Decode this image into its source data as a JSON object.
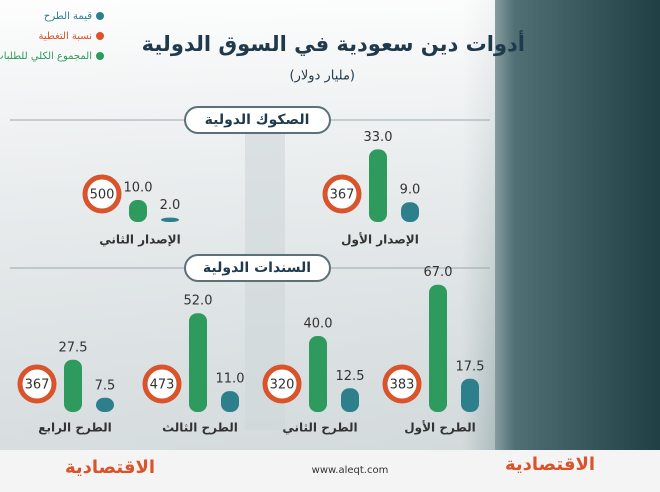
{
  "title": "أدوات دين سعودية في السوق الدولية",
  "subtitle": "(مليار دولار)",
  "legend": [
    {
      "name": "قيمة الطرح",
      "color": "#2e7f8c"
    },
    {
      "name": "نسبة التغطية",
      "color": "#d9532b"
    },
    {
      "name": "المجموع الكلي للطلبات",
      "color": "#2f9a5e"
    }
  ],
  "chart_data": [
    {
      "type": "bar",
      "title": "الصكوك الدولية",
      "categories": [
        "الإصدار الأول",
        "الإصدار الثاني"
      ],
      "series": [
        {
          "color": "#2f9a5e",
          "values": [
            33,
            10
          ],
          "value_labels": [
            "33.0",
            "10.0"
          ]
        },
        {
          "color": "#2e7f8c",
          "values": [
            9,
            2
          ],
          "value_labels": [
            "9.0",
            "2.0"
          ]
        }
      ],
      "coverage": {
        "color": "#d9532b",
        "values": [
          367,
          500
        ]
      }
    },
    {
      "type": "bar",
      "title": "السندات الدولية",
      "categories": [
        "الطرح الأول",
        "الطرح الثاني",
        "الطرح الثالث",
        "الطرح الرابع"
      ],
      "series": [
        {
          "color": "#2f9a5e",
          "values": [
            67,
            40,
            52,
            27.5
          ],
          "value_labels": [
            "67.0",
            "40.0",
            "52.0",
            "27.5"
          ]
        },
        {
          "color": "#2e7f8c",
          "values": [
            17.5,
            12.5,
            11,
            7.5
          ],
          "value_labels": [
            "17.5",
            "12.5",
            "11.0",
            "7.5"
          ]
        }
      ],
      "coverage": {
        "color": "#d9532b",
        "values": [
          383,
          320,
          473,
          367
        ]
      }
    }
  ],
  "footer": {
    "url": "www.aleqt.com",
    "logo": "الاقتصادية"
  }
}
